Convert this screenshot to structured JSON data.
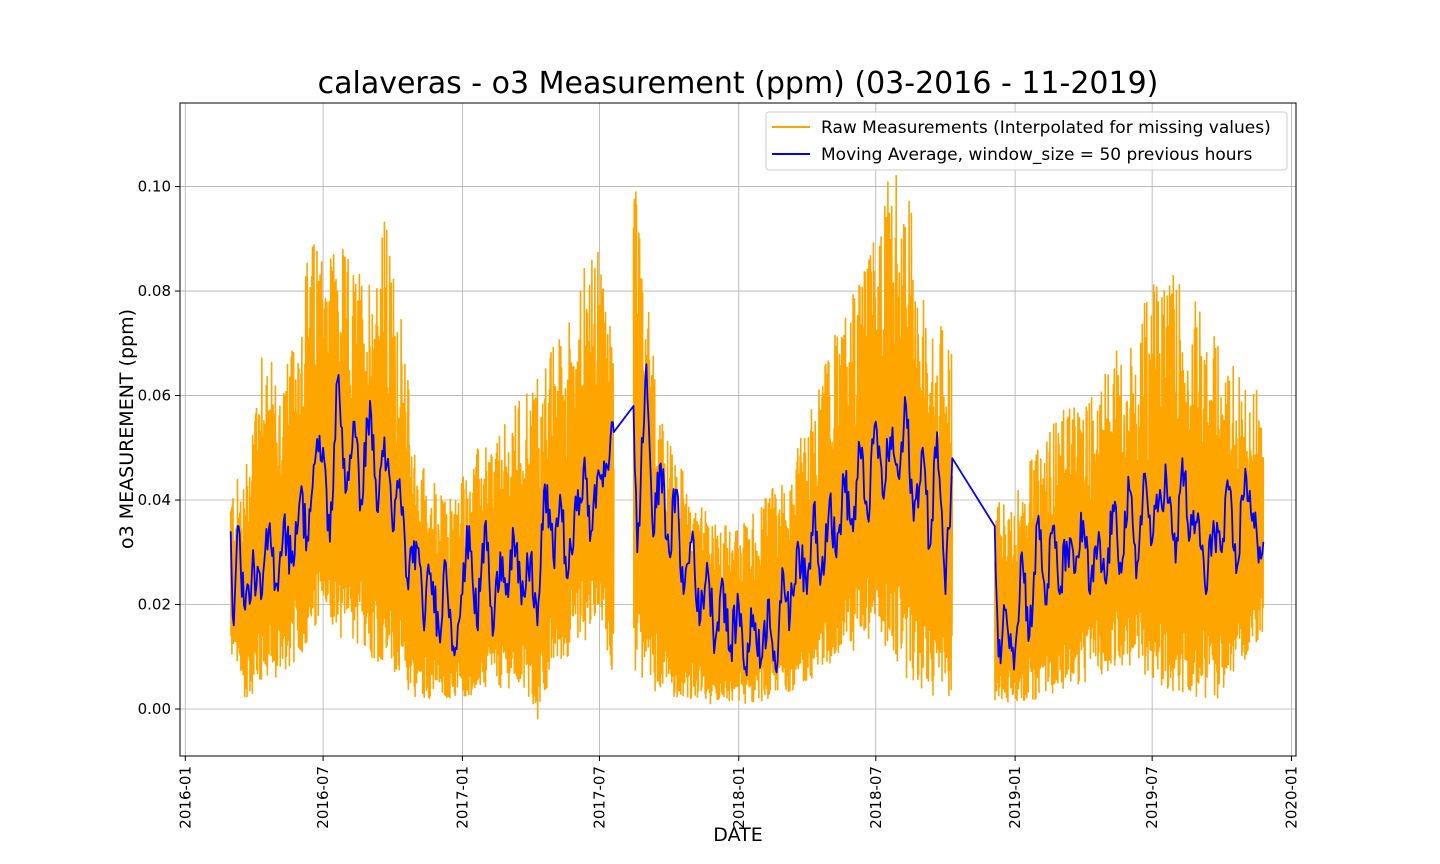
{
  "chart_data": {
    "type": "line",
    "title": "calaveras - o3 Measurement (ppm) (03-2016 - 11-2019)",
    "xlabel": "DATE",
    "ylabel": "o3 MEASUREMENT (ppm)",
    "xlim": [
      "2015-12-25",
      "2020-01-07"
    ],
    "ylim": [
      -0.009,
      0.116
    ],
    "grid": true,
    "legend_position": "top-right",
    "x_ticks": [
      "2016-01",
      "2016-07",
      "2017-01",
      "2017-07",
      "2018-01",
      "2018-07",
      "2019-01",
      "2019-07",
      "2020-01"
    ],
    "y_ticks": [
      "0.00",
      "0.02",
      "0.04",
      "0.06",
      "0.08",
      "0.10"
    ],
    "series": [
      {
        "name": "Raw Measurements (Interpolated for missing values)",
        "color": "#ffa500",
        "x": [
          "2016-03-01",
          "2016-03-20",
          "2016-04-10",
          "2016-05-01",
          "2016-05-20",
          "2016-06-10",
          "2016-07-01",
          "2016-07-20",
          "2016-08-10",
          "2016-09-01",
          "2016-09-20",
          "2016-10-10",
          "2016-11-01",
          "2016-11-20",
          "2016-12-10",
          "2017-01-01",
          "2017-01-20",
          "2017-02-10",
          "2017-03-01",
          "2017-03-20",
          "2017-04-10",
          "2017-05-01",
          "2017-05-20",
          "2017-06-10",
          "2017-07-01",
          "2017-07-20",
          "2017-08-15",
          "2017-09-01",
          "2017-09-20",
          "2017-10-10",
          "2017-11-01",
          "2017-11-20",
          "2017-12-10",
          "2018-01-01",
          "2018-01-20",
          "2018-02-10",
          "2018-03-01",
          "2018-03-20",
          "2018-04-10",
          "2018-05-01",
          "2018-05-20",
          "2018-06-10",
          "2018-07-01",
          "2018-07-20",
          "2018-08-10",
          "2018-09-01",
          "2018-09-20",
          "2018-10-10",
          "2018-12-05",
          "2018-12-20",
          "2019-01-10",
          "2019-02-01",
          "2019-02-20",
          "2019-03-10",
          "2019-04-01",
          "2019-04-20",
          "2019-05-10",
          "2019-06-01",
          "2019-06-20",
          "2019-07-10",
          "2019-08-01",
          "2019-08-20",
          "2019-09-10",
          "2019-10-01",
          "2019-10-20",
          "2019-11-10",
          "2019-11-25"
        ],
        "min": [
          0.01,
          0.002,
          0.004,
          0.006,
          0.008,
          0.012,
          0.016,
          0.014,
          0.012,
          0.01,
          0.008,
          0.004,
          0.002,
          0.002,
          0.002,
          0.002,
          0.003,
          0.004,
          0.004,
          0.004,
          -0.003,
          0.008,
          0.01,
          0.012,
          0.02,
          0.004,
          0.006,
          0.004,
          0.003,
          0.002,
          0.002,
          0.001,
          0.001,
          0.001,
          0.001,
          0.002,
          0.003,
          0.004,
          0.006,
          0.008,
          0.01,
          0.012,
          0.014,
          0.01,
          0.006,
          0.003,
          0.002,
          0.001,
          0.001,
          0.001,
          0.001,
          0.002,
          0.003,
          0.004,
          0.005,
          0.006,
          0.008,
          0.008,
          0.006,
          0.004,
          0.003,
          0.002,
          0.002,
          0.001,
          0.007,
          0.011,
          0.015
        ],
        "max": [
          0.043,
          0.046,
          0.075,
          0.063,
          0.068,
          0.088,
          0.093,
          0.09,
          0.085,
          0.085,
          0.095,
          0.078,
          0.05,
          0.045,
          0.04,
          0.046,
          0.05,
          0.052,
          0.055,
          0.062,
          0.065,
          0.07,
          0.075,
          0.085,
          0.088,
          0.072,
          0.11,
          0.08,
          0.055,
          0.05,
          0.04,
          0.038,
          0.037,
          0.035,
          0.038,
          0.042,
          0.045,
          0.05,
          0.06,
          0.07,
          0.075,
          0.086,
          0.09,
          0.105,
          0.1,
          0.085,
          0.075,
          0.07,
          0.042,
          0.04,
          0.045,
          0.05,
          0.055,
          0.058,
          0.06,
          0.065,
          0.07,
          0.072,
          0.078,
          0.083,
          0.085,
          0.08,
          0.075,
          0.07,
          0.065,
          0.062,
          0.06
        ]
      },
      {
        "name": "Moving Average, window_size = 50 previous hours",
        "color": "#0000ff",
        "x": [
          "2016-03-01",
          "2016-03-05",
          "2016-03-10",
          "2016-03-20",
          "2016-04-01",
          "2016-04-10",
          "2016-04-20",
          "2016-05-01",
          "2016-05-10",
          "2016-05-20",
          "2016-06-01",
          "2016-06-10",
          "2016-06-20",
          "2016-07-01",
          "2016-07-10",
          "2016-07-20",
          "2016-08-01",
          "2016-08-10",
          "2016-08-20",
          "2016-09-01",
          "2016-09-10",
          "2016-09-20",
          "2016-10-01",
          "2016-10-10",
          "2016-10-20",
          "2016-11-01",
          "2016-11-10",
          "2016-11-20",
          "2016-12-01",
          "2016-12-10",
          "2016-12-20",
          "2017-01-01",
          "2017-01-10",
          "2017-01-20",
          "2017-02-01",
          "2017-02-10",
          "2017-02-20",
          "2017-03-01",
          "2017-03-10",
          "2017-03-20",
          "2017-04-01",
          "2017-04-10",
          "2017-04-20",
          "2017-05-01",
          "2017-05-10",
          "2017-05-20",
          "2017-06-01",
          "2017-06-10",
          "2017-06-20",
          "2017-07-01",
          "2017-07-10",
          "2017-07-20",
          "2017-08-15",
          "2017-08-20",
          "2017-09-01",
          "2017-09-10",
          "2017-09-20",
          "2017-10-01",
          "2017-10-10",
          "2017-10-20",
          "2017-11-01",
          "2017-11-10",
          "2017-11-20",
          "2017-12-01",
          "2017-12-10",
          "2017-12-20",
          "2018-01-01",
          "2018-01-10",
          "2018-01-20",
          "2018-02-01",
          "2018-02-10",
          "2018-02-20",
          "2018-03-01",
          "2018-03-10",
          "2018-03-20",
          "2018-04-01",
          "2018-04-10",
          "2018-04-20",
          "2018-05-01",
          "2018-05-10",
          "2018-05-20",
          "2018-06-01",
          "2018-06-10",
          "2018-06-20",
          "2018-07-01",
          "2018-07-10",
          "2018-07-20",
          "2018-08-01",
          "2018-08-10",
          "2018-08-20",
          "2018-09-01",
          "2018-09-10",
          "2018-09-20",
          "2018-10-01",
          "2018-10-10",
          "2018-12-05",
          "2018-12-10",
          "2018-12-20",
          "2019-01-01",
          "2019-01-10",
          "2019-01-20",
          "2019-02-01",
          "2019-02-10",
          "2019-02-20",
          "2019-03-01",
          "2019-03-10",
          "2019-03-20",
          "2019-04-01",
          "2019-04-10",
          "2019-04-20",
          "2019-05-01",
          "2019-05-10",
          "2019-05-20",
          "2019-06-01",
          "2019-06-10",
          "2019-06-20",
          "2019-07-01",
          "2019-07-10",
          "2019-07-20",
          "2019-08-01",
          "2019-08-10",
          "2019-08-20",
          "2019-09-01",
          "2019-09-10",
          "2019-09-20",
          "2019-10-01",
          "2019-10-10",
          "2019-10-20",
          "2019-11-01",
          "2019-11-10",
          "2019-11-20",
          "2019-11-25"
        ],
        "y": [
          0.034,
          0.016,
          0.035,
          0.019,
          0.027,
          0.021,
          0.034,
          0.024,
          0.036,
          0.028,
          0.041,
          0.033,
          0.047,
          0.05,
          0.032,
          0.063,
          0.042,
          0.055,
          0.04,
          0.059,
          0.038,
          0.052,
          0.034,
          0.044,
          0.025,
          0.032,
          0.018,
          0.026,
          0.015,
          0.028,
          0.012,
          0.022,
          0.035,
          0.016,
          0.036,
          0.014,
          0.03,
          0.024,
          0.033,
          0.02,
          0.029,
          0.016,
          0.043,
          0.029,
          0.041,
          0.025,
          0.038,
          0.046,
          0.034,
          0.045,
          0.047,
          0.053,
          0.058,
          0.03,
          0.066,
          0.033,
          0.047,
          0.03,
          0.042,
          0.022,
          0.034,
          0.016,
          0.028,
          0.013,
          0.025,
          0.011,
          0.02,
          0.008,
          0.018,
          0.01,
          0.021,
          0.007,
          0.026,
          0.018,
          0.032,
          0.022,
          0.039,
          0.026,
          0.04,
          0.029,
          0.044,
          0.034,
          0.05,
          0.037,
          0.055,
          0.041,
          0.052,
          0.044,
          0.058,
          0.036,
          0.05,
          0.031,
          0.053,
          0.022,
          0.048,
          0.035,
          0.01,
          0.019,
          0.011,
          0.03,
          0.014,
          0.037,
          0.02,
          0.035,
          0.022,
          0.032,
          0.026,
          0.036,
          0.022,
          0.031,
          0.024,
          0.039,
          0.028,
          0.042,
          0.025,
          0.045,
          0.032,
          0.04,
          0.044,
          0.028,
          0.048,
          0.033,
          0.036,
          0.022,
          0.036,
          0.03,
          0.042,
          0.026,
          0.046,
          0.036,
          0.031,
          0.032
        ]
      }
    ]
  }
}
